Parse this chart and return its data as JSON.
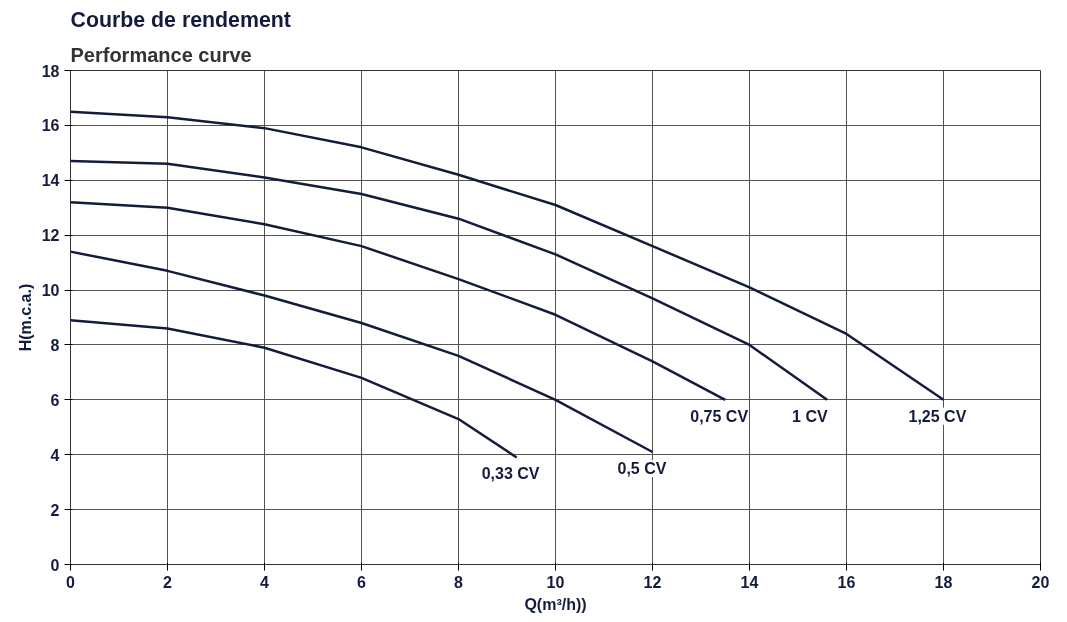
{
  "chart_data": {
    "type": "line",
    "title": "Courbe de rendement",
    "subtitle": "Performance curve",
    "xlabel": "Q(m³/h))",
    "ylabel": "H(m.c.a.)",
    "xlim": [
      0,
      20
    ],
    "ylim": [
      0,
      18
    ],
    "xticks": [
      0,
      2,
      4,
      6,
      8,
      10,
      12,
      14,
      16,
      18,
      20
    ],
    "yticks": [
      0,
      2,
      4,
      6,
      8,
      10,
      12,
      14,
      16,
      18
    ],
    "grid": true,
    "marker": "none",
    "line_style": "solid",
    "series": [
      {
        "color": "#141c3c",
        "x": [
          0,
          2,
          4,
          6,
          8,
          10,
          12,
          14,
          16,
          18
        ],
        "values": [
          16.5,
          16.3,
          15.9,
          15.2,
          14.2,
          13.1,
          11.6,
          10.1,
          8.4,
          6.0
        ]
      },
      {
        "color": "#141c3c",
        "x": [
          0,
          2,
          4,
          6,
          8,
          10,
          12,
          14,
          15.6
        ],
        "values": [
          14.7,
          14.6,
          14.1,
          13.5,
          12.6,
          11.3,
          9.7,
          8.0,
          6.0
        ]
      },
      {
        "color": "#141c3c",
        "x": [
          0,
          2,
          4,
          6,
          8,
          10,
          12,
          13.5
        ],
        "values": [
          13.2,
          13.0,
          12.4,
          11.6,
          10.4,
          9.1,
          7.4,
          6.0
        ]
      },
      {
        "color": "#141c3c",
        "x": [
          0,
          2,
          4,
          6,
          8,
          10,
          12
        ],
        "values": [
          11.4,
          10.7,
          9.8,
          8.8,
          7.6,
          6.0,
          4.1
        ]
      },
      {
        "color": "#141c3c",
        "x": [
          0,
          2,
          4,
          6,
          8,
          9.2
        ],
        "values": [
          8.9,
          8.6,
          7.9,
          6.8,
          5.3,
          3.9
        ]
      }
    ],
    "annotations": [
      {
        "text": "1,25 CV",
        "x": 18,
        "y": 6.0
      },
      {
        "text": "1 CV",
        "x": 15.6,
        "y": 6.0
      },
      {
        "text": "0,75 CV",
        "x": 13.5,
        "y": 6.0
      },
      {
        "text": "0,5 CV",
        "x": 12,
        "y": 4.1
      },
      {
        "text": "0,33 CV",
        "x": 9.2,
        "y": 3.9
      }
    ]
  }
}
